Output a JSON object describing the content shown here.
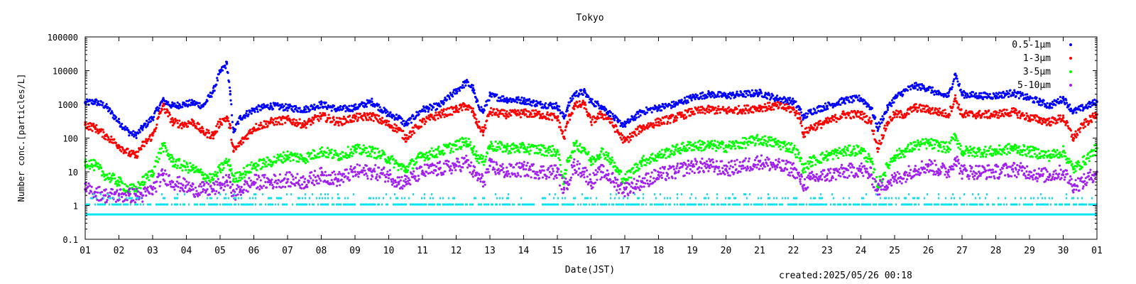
{
  "chart_data": {
    "type": "scatter",
    "title": "Tokyo",
    "xlabel": "Date(JST)",
    "ylabel": "Number conc.[particles/L]",
    "y_scale": "log",
    "ylim": [
      0.1,
      100000
    ],
    "xlim": [
      0,
      30
    ],
    "x_ticks": [
      "01",
      "02",
      "03",
      "04",
      "05",
      "06",
      "07",
      "08",
      "09",
      "10",
      "11",
      "12",
      "13",
      "14",
      "15",
      "16",
      "17",
      "18",
      "19",
      "20",
      "21",
      "22",
      "23",
      "24",
      "25",
      "26",
      "27",
      "28",
      "29",
      "30",
      "01"
    ],
    "y_ticks": [
      "0.1",
      "1",
      "10",
      "100",
      "1000",
      "10000",
      "100000"
    ],
    "legend_position": "top-right",
    "footer": "created:2025/05/26 00:18",
    "series": [
      {
        "name": "0.5-1μm",
        "color": "#0000ff",
        "x": [
          0,
          0.3,
          0.6,
          1.0,
          1.3,
          1.5,
          1.7,
          2.0,
          2.3,
          2.6,
          2.9,
          3.2,
          3.5,
          3.8,
          4.0,
          4.2,
          4.3,
          4.4,
          4.6,
          5.0,
          5.5,
          6.0,
          6.5,
          7.0,
          7.5,
          8.0,
          8.5,
          9.0,
          9.3,
          9.5,
          10.0,
          10.5,
          11.0,
          11.3,
          11.5,
          11.6,
          11.8,
          12.0,
          12.5,
          13.0,
          13.5,
          14.0,
          14.2,
          14.3,
          14.5,
          14.8,
          15.0,
          15.3,
          15.5,
          15.8,
          16.0,
          16.5,
          17.0,
          17.5,
          18.0,
          18.5,
          19.0,
          19.5,
          20.0,
          20.5,
          21.0,
          21.2,
          21.3,
          21.5,
          22.0,
          22.5,
          23.0,
          23.3,
          23.5,
          23.8,
          24.0,
          24.3,
          24.6,
          25.0,
          25.3,
          25.6,
          25.8,
          26.0,
          26.5,
          27.0,
          27.5,
          28.0,
          28.3,
          28.6,
          29.0,
          29.3,
          29.6,
          30.0
        ],
        "y": [
          1100,
          1200,
          900,
          300,
          150,
          120,
          200,
          400,
          1300,
          900,
          1000,
          1100,
          900,
          2500,
          9000,
          16000,
          2000,
          150,
          400,
          700,
          900,
          800,
          700,
          1000,
          700,
          800,
          1200,
          500,
          400,
          250,
          700,
          900,
          2500,
          4500,
          3000,
          1200,
          600,
          1800,
          1400,
          1300,
          1000,
          900,
          400,
          800,
          2000,
          2300,
          1200,
          900,
          600,
          300,
          250,
          600,
          800,
          1000,
          1600,
          2000,
          1800,
          2000,
          2200,
          1500,
          1200,
          700,
          400,
          600,
          900,
          1300,
          1500,
          800,
          200,
          800,
          1500,
          2500,
          3500,
          3000,
          2000,
          1800,
          8000,
          2000,
          1800,
          1800,
          2200,
          1500,
          1200,
          900,
          1500,
          600,
          800,
          1200
        ]
      },
      {
        "name": "1-3μm",
        "color": "#ff0000",
        "x": [
          0,
          0.3,
          0.6,
          1.0,
          1.3,
          1.5,
          1.7,
          2.0,
          2.3,
          2.6,
          2.9,
          3.2,
          3.5,
          3.8,
          4.0,
          4.2,
          4.3,
          4.4,
          4.6,
          5.0,
          5.5,
          6.0,
          6.5,
          7.0,
          7.5,
          8.0,
          8.5,
          9.0,
          9.3,
          9.5,
          10.0,
          10.5,
          11.0,
          11.3,
          11.5,
          11.6,
          11.8,
          12.0,
          12.5,
          13.0,
          13.5,
          14.0,
          14.2,
          14.3,
          14.5,
          14.8,
          15.0,
          15.3,
          15.5,
          15.8,
          16.0,
          16.5,
          17.0,
          17.5,
          18.0,
          18.5,
          19.0,
          19.5,
          20.0,
          20.5,
          21.0,
          21.2,
          21.3,
          21.5,
          22.0,
          22.5,
          23.0,
          23.3,
          23.5,
          23.8,
          24.0,
          24.3,
          24.6,
          25.0,
          25.3,
          25.6,
          25.8,
          26.0,
          26.5,
          27.0,
          27.5,
          28.0,
          28.3,
          28.6,
          29.0,
          29.3,
          29.6,
          30.0
        ],
        "y": [
          250,
          200,
          120,
          60,
          35,
          30,
          60,
          120,
          900,
          300,
          250,
          300,
          150,
          120,
          300,
          400,
          200,
          40,
          70,
          200,
          300,
          350,
          250,
          450,
          300,
          400,
          450,
          250,
          180,
          100,
          300,
          500,
          700,
          900,
          600,
          300,
          150,
          600,
          500,
          550,
          500,
          400,
          100,
          300,
          900,
          1000,
          300,
          500,
          400,
          150,
          80,
          200,
          300,
          400,
          600,
          700,
          650,
          700,
          800,
          900,
          700,
          400,
          130,
          200,
          300,
          500,
          500,
          300,
          50,
          300,
          500,
          500,
          800,
          700,
          600,
          500,
          1500,
          500,
          500,
          500,
          600,
          400,
          350,
          300,
          400,
          100,
          250,
          500
        ]
      },
      {
        "name": "3-5μm",
        "color": "#00ff00",
        "x": [
          0,
          0.3,
          0.6,
          1.0,
          1.3,
          1.5,
          1.7,
          2.0,
          2.3,
          2.6,
          2.9,
          3.2,
          3.5,
          3.8,
          4.0,
          4.2,
          4.3,
          4.4,
          4.6,
          5.0,
          5.5,
          6.0,
          6.5,
          7.0,
          7.5,
          8.0,
          8.5,
          9.0,
          9.3,
          9.5,
          10.0,
          10.5,
          11.0,
          11.3,
          11.5,
          11.6,
          11.8,
          12.0,
          12.5,
          13.0,
          13.5,
          14.0,
          14.2,
          14.3,
          14.5,
          14.8,
          15.0,
          15.3,
          15.5,
          15.8,
          16.0,
          16.5,
          17.0,
          17.5,
          18.0,
          18.5,
          19.0,
          19.5,
          20.0,
          20.5,
          21.0,
          21.2,
          21.3,
          21.5,
          22.0,
          22.5,
          23.0,
          23.3,
          23.5,
          23.8,
          24.0,
          24.3,
          24.6,
          25.0,
          25.3,
          25.6,
          25.8,
          26.0,
          26.5,
          27.0,
          27.5,
          28.0,
          28.3,
          28.6,
          29.0,
          29.3,
          29.6,
          30.0
        ],
        "y": [
          20,
          15,
          8,
          5,
          3,
          3,
          5,
          10,
          60,
          20,
          15,
          12,
          8,
          6,
          12,
          20,
          15,
          6,
          8,
          15,
          20,
          30,
          25,
          40,
          30,
          45,
          40,
          25,
          15,
          12,
          30,
          40,
          60,
          80,
          50,
          30,
          20,
          60,
          50,
          50,
          45,
          40,
          5,
          20,
          60,
          50,
          20,
          40,
          30,
          10,
          6,
          20,
          30,
          45,
          60,
          60,
          55,
          70,
          90,
          70,
          50,
          25,
          12,
          20,
          30,
          40,
          45,
          20,
          4,
          15,
          30,
          40,
          60,
          70,
          60,
          50,
          120,
          40,
          40,
          40,
          50,
          40,
          35,
          30,
          40,
          12,
          20,
          50
        ]
      },
      {
        "name": "5-10μm",
        "color": "#a020f0",
        "x": [
          0,
          0.3,
          0.6,
          1.0,
          1.3,
          1.5,
          1.7,
          2.0,
          2.3,
          2.6,
          2.9,
          3.2,
          3.5,
          3.8,
          4.0,
          4.2,
          4.3,
          4.4,
          4.6,
          5.0,
          5.5,
          6.0,
          6.5,
          7.0,
          7.5,
          8.0,
          8.5,
          9.0,
          9.3,
          9.5,
          10.0,
          10.5,
          11.0,
          11.3,
          11.5,
          11.6,
          11.8,
          12.0,
          12.5,
          13.0,
          13.5,
          14.0,
          14.2,
          14.3,
          14.5,
          14.8,
          15.0,
          15.3,
          15.5,
          15.8,
          16.0,
          16.5,
          17.0,
          17.5,
          18.0,
          18.5,
          19.0,
          19.5,
          20.0,
          20.5,
          21.0,
          21.2,
          21.3,
          21.5,
          22.0,
          22.5,
          23.0,
          23.3,
          23.5,
          23.8,
          24.0,
          24.3,
          24.6,
          25.0,
          25.3,
          25.6,
          25.8,
          26.0,
          26.5,
          27.0,
          27.5,
          28.0,
          28.3,
          28.6,
          29.0,
          29.3,
          29.6,
          30.0
        ],
        "y": [
          3,
          2.5,
          2,
          2,
          2,
          2,
          2,
          3,
          8,
          5,
          4,
          3,
          3,
          3,
          4,
          5,
          5,
          2,
          3,
          5,
          5,
          6,
          5,
          8,
          6,
          10,
          10,
          8,
          5,
          5,
          10,
          12,
          15,
          20,
          10,
          8,
          5,
          15,
          10,
          12,
          10,
          10,
          3,
          5,
          15,
          10,
          5,
          10,
          8,
          4,
          3,
          5,
          8,
          10,
          15,
          15,
          12,
          15,
          20,
          15,
          12,
          6,
          4,
          6,
          8,
          10,
          12,
          8,
          3,
          5,
          6,
          8,
          12,
          15,
          12,
          10,
          25,
          10,
          10,
          10,
          12,
          10,
          8,
          8,
          10,
          4,
          5,
          10
        ]
      }
    ]
  }
}
